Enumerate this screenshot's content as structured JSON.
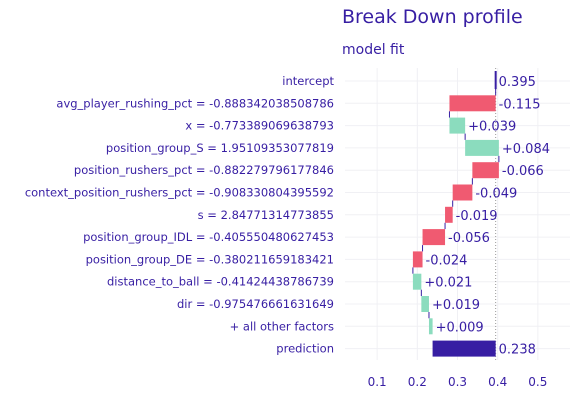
{
  "chart_data": {
    "type": "bar",
    "subtype": "break-down waterfall",
    "title": "Break Down profile",
    "subtitle": "model  fit",
    "xlim": [
      0.02,
      0.58
    ],
    "x_ticks": [
      0.1,
      0.2,
      0.3,
      0.4,
      0.5
    ],
    "x_tick_labels": [
      "0.1",
      "0.2",
      "0.3",
      "0.4",
      "0.5"
    ],
    "grid": true,
    "baseline": 0.395,
    "rows": [
      {
        "label": "intercept",
        "start": 0.395,
        "end": 0.395,
        "value_label": "0.395",
        "kind": "intercept"
      },
      {
        "label": "avg_player_rushing_pct = -0.888342038508786",
        "start": 0.395,
        "end": 0.28,
        "value_label": "-0.115",
        "kind": "negative"
      },
      {
        "label": "x = -0.773389069638793",
        "start": 0.28,
        "end": 0.319,
        "value_label": "+0.039",
        "kind": "positive"
      },
      {
        "label": "position_group_S = 1.95109353077819",
        "start": 0.319,
        "end": 0.403,
        "value_label": "+0.084",
        "kind": "positive"
      },
      {
        "label": "position_rushers_pct = -0.882279796177846",
        "start": 0.403,
        "end": 0.337,
        "value_label": "-0.066",
        "kind": "negative"
      },
      {
        "label": "context_position_rushers_pct = -0.908330804395592",
        "start": 0.337,
        "end": 0.288,
        "value_label": "-0.049",
        "kind": "negative"
      },
      {
        "label": "s = 2.84771314773855",
        "start": 0.288,
        "end": 0.269,
        "value_label": "-0.019",
        "kind": "negative"
      },
      {
        "label": "position_group_IDL = -0.405550480627453",
        "start": 0.269,
        "end": 0.213,
        "value_label": "-0.056",
        "kind": "negative"
      },
      {
        "label": "position_group_DE = -0.380211659183421",
        "start": 0.213,
        "end": 0.189,
        "value_label": "-0.024",
        "kind": "negative"
      },
      {
        "label": "distance_to_ball = -0.41424438786739",
        "start": 0.189,
        "end": 0.21,
        "value_label": "+0.021",
        "kind": "positive"
      },
      {
        "label": "dir = -0.975476661631649",
        "start": 0.21,
        "end": 0.229,
        "value_label": "+0.019",
        "kind": "positive"
      },
      {
        "label": "+ all other factors",
        "start": 0.229,
        "end": 0.238,
        "value_label": "+0.009",
        "kind": "positive"
      },
      {
        "label": "prediction",
        "start": 0.238,
        "end": 0.395,
        "value_label": "0.238",
        "kind": "prediction"
      }
    ],
    "colors": {
      "positive": "#8bdcbe",
      "negative": "#f05a71",
      "prediction": "#371ea3",
      "intercept": "#371ea3",
      "text": "#371ea3",
      "tick_text": "#371ea3",
      "grid": "#f0f0f4",
      "connector": "#371ea3"
    }
  }
}
